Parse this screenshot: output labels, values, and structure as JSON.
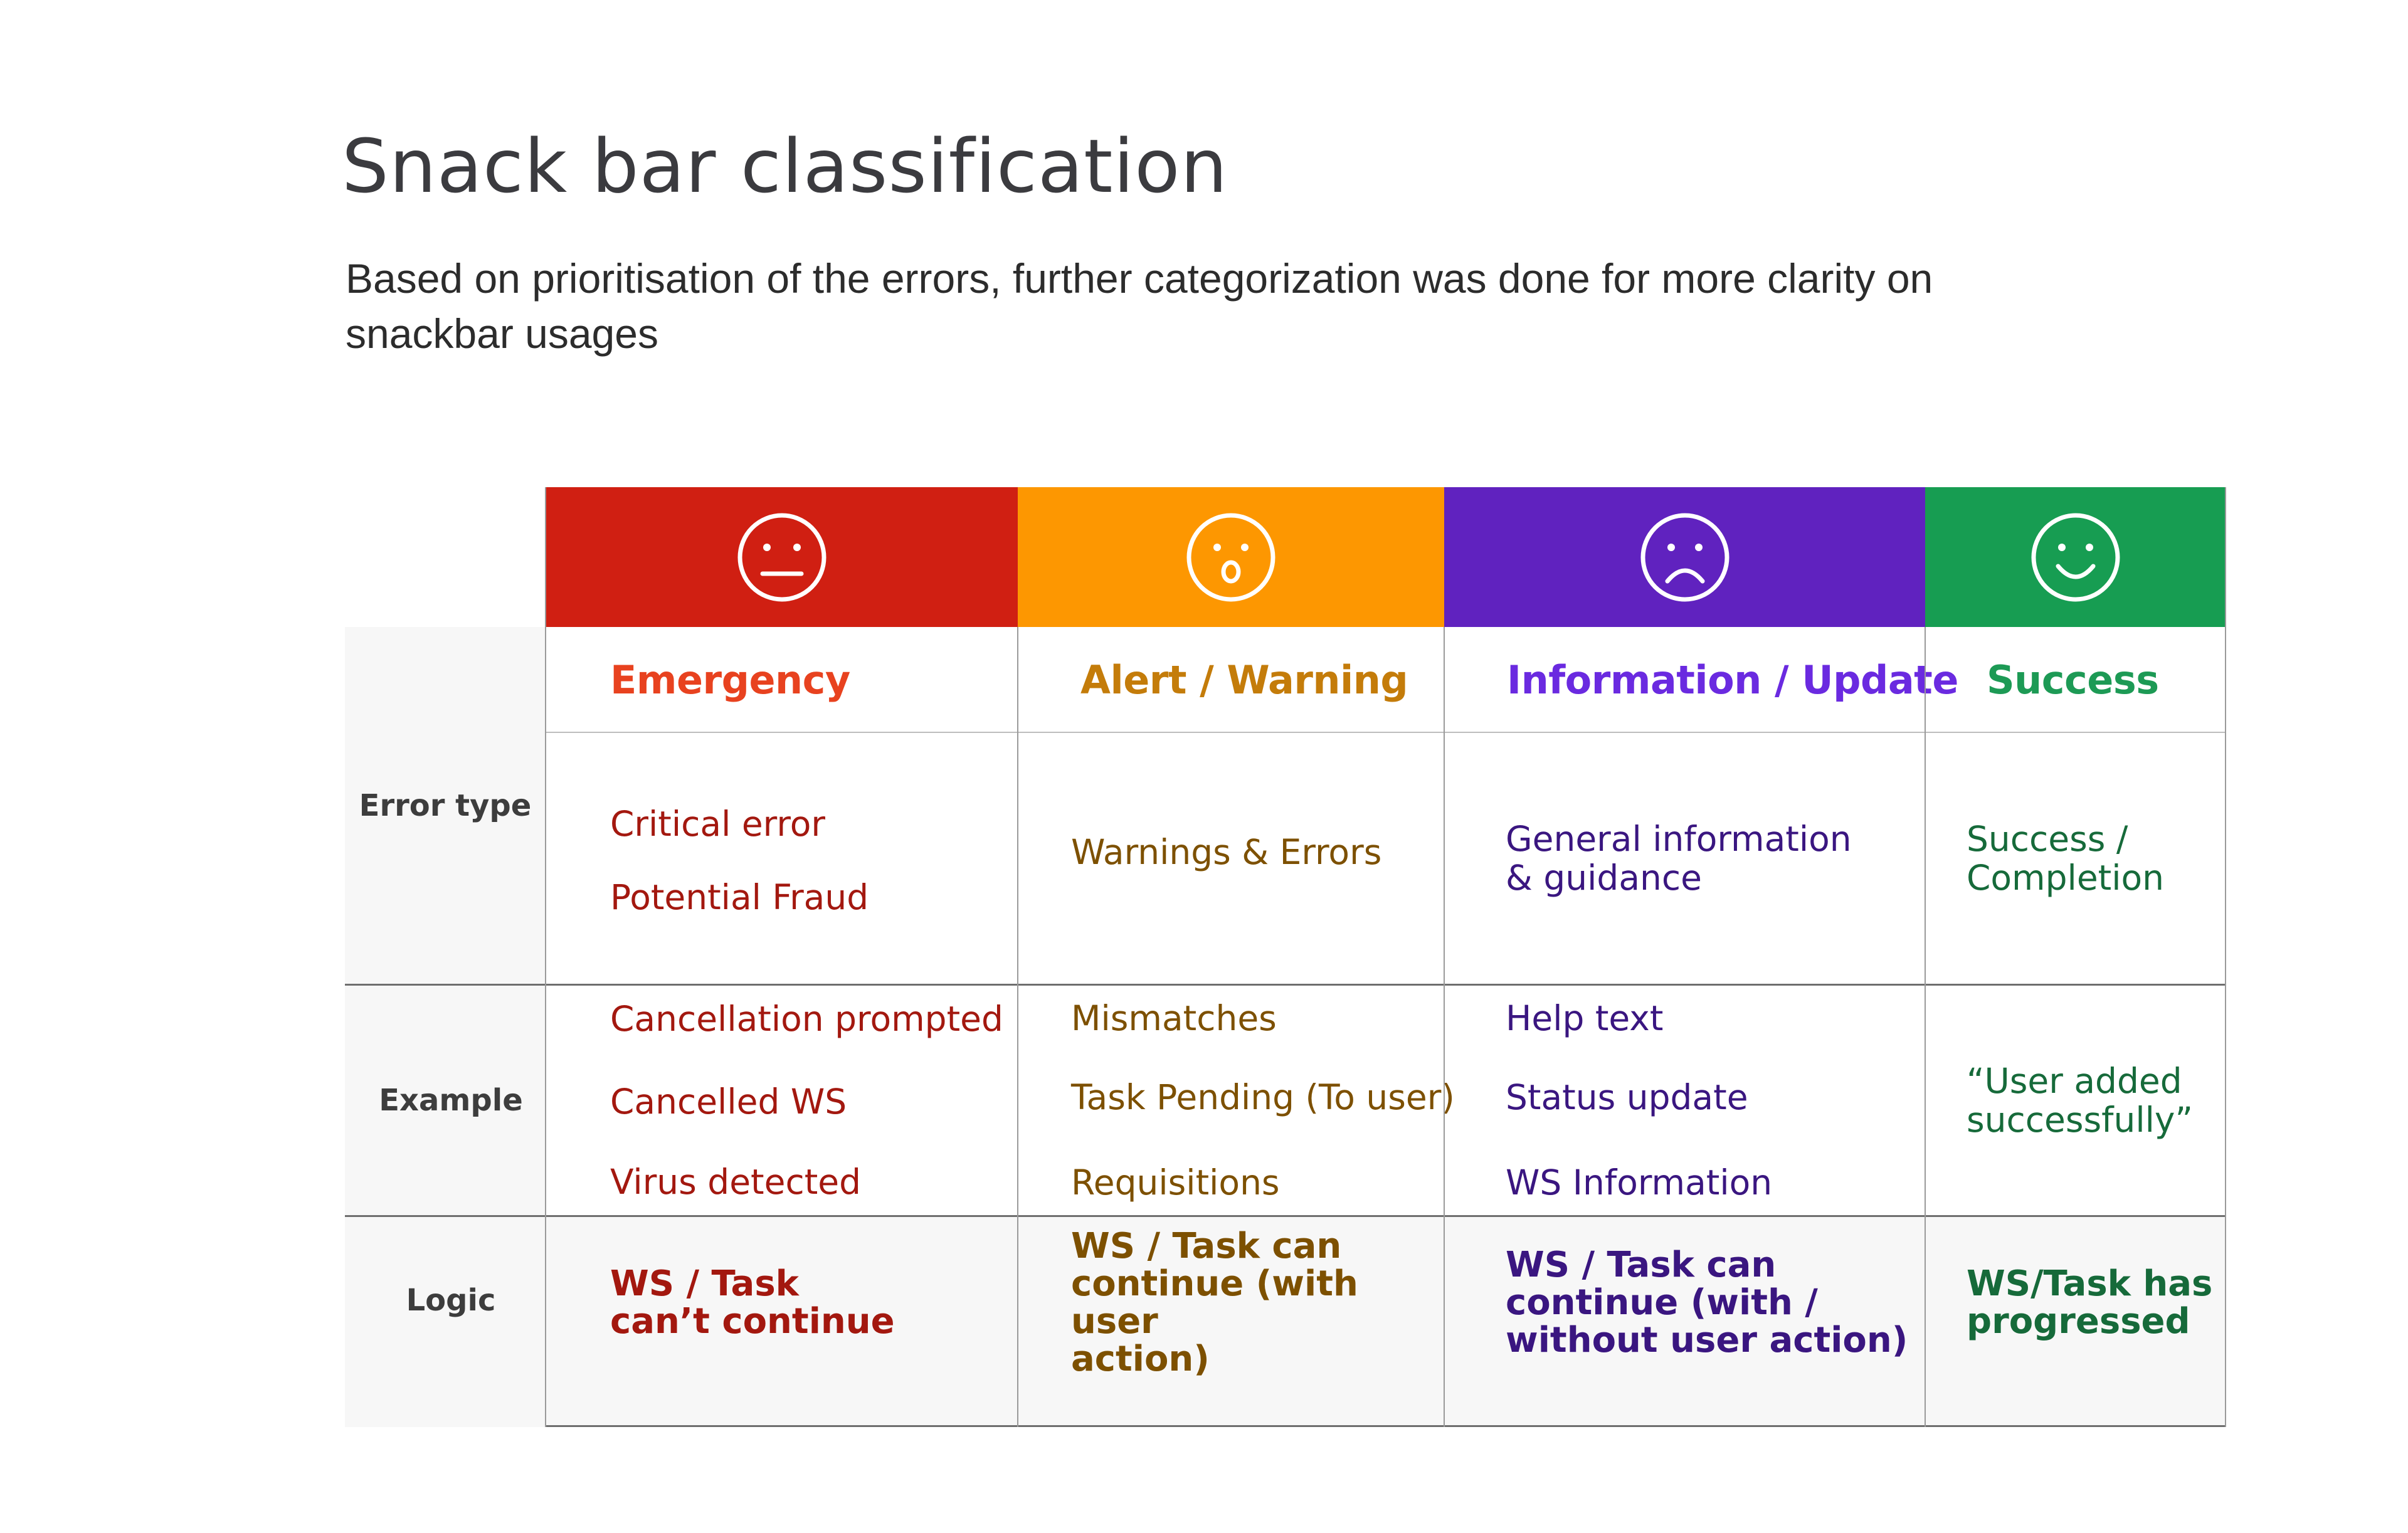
{
  "title": "Snack bar classification",
  "subtitle": "Based on prioritisation of the errors, further categorization was done for more clarity on snackbar usages",
  "row_labels": {
    "error_type": "Error type",
    "example": "Example",
    "logic": "Logic"
  },
  "columns": [
    {
      "key": "emergency",
      "color": "#d01f12",
      "text_color": "#a3180f",
      "title_color": "#e8421f",
      "icon": "neutral-face-icon",
      "name": "Emergency",
      "error_types": [
        "Critical error",
        "Potential Fraud"
      ],
      "examples": [
        "Cancellation prompted",
        "Cancelled WS",
        "Virus detected"
      ],
      "logic": "WS / Task\ncan’t continue"
    },
    {
      "key": "alert",
      "color": "#fd9701",
      "text_color": "#7d5000",
      "title_color": "#c47c0a",
      "icon": "surprised-face-icon",
      "name": "Alert / Warning",
      "error_types": [
        "Warnings & Errors"
      ],
      "examples": [
        "Mismatches",
        "Task Pending (To user)",
        "Requisitions"
      ],
      "logic": "WS / Task can\ncontinue (with user\naction)"
    },
    {
      "key": "information",
      "color": "#6022bf",
      "text_color": "#3a1680",
      "title_color": "#6a2ae0",
      "icon": "sad-face-icon",
      "name": "Information / Update",
      "error_types": [
        "General information\n& guidance"
      ],
      "examples": [
        "Help text",
        "Status update",
        "WS Information"
      ],
      "logic": "WS / Task can\ncontinue (with /\nwithout user action)"
    },
    {
      "key": "success",
      "color": "#179d52",
      "text_color": "#166a3a",
      "title_color": "#1d9a55",
      "icon": "smiling-face-icon",
      "name": "Success",
      "error_types": [
        "Success /\nCompletion"
      ],
      "examples": [
        "“User added\nsuccessfully”"
      ],
      "logic": "WS/Task has\nprogressed"
    }
  ]
}
